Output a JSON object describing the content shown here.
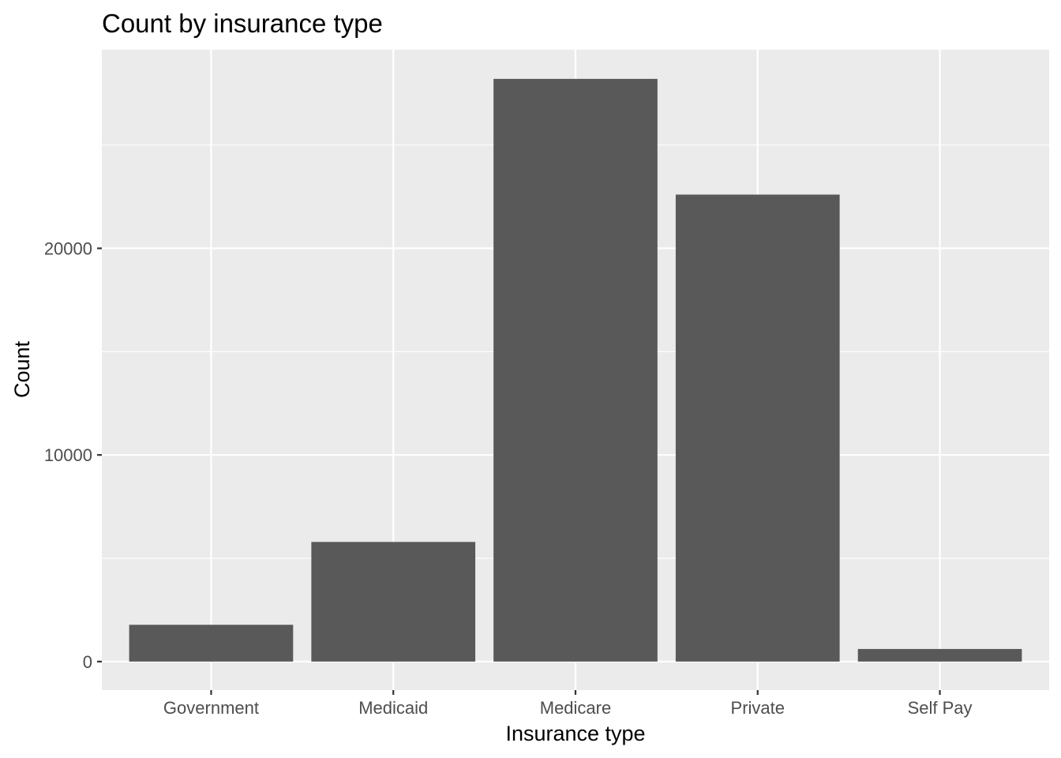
{
  "chart_data": {
    "type": "bar",
    "title": "Count by insurance type",
    "xlabel": "Insurance type",
    "ylabel": "Count",
    "categories": [
      "Government",
      "Medicaid",
      "Medicare",
      "Private",
      "Self Pay"
    ],
    "values": [
      1780,
      5790,
      28200,
      22600,
      610
    ],
    "ylim": [
      -1380,
      29610
    ],
    "y_ticks": [
      0,
      10000,
      20000
    ],
    "y_tick_labels": [
      "0",
      "10000",
      "20000"
    ],
    "grid": true,
    "legend": "none",
    "colors": {
      "panel_background": "#ebebeb",
      "grid_line": "#ffffff",
      "bar_fill": "#595959",
      "tick_mark": "#333333",
      "tick_label": "#4d4d4d",
      "title_text": "#000000"
    }
  }
}
